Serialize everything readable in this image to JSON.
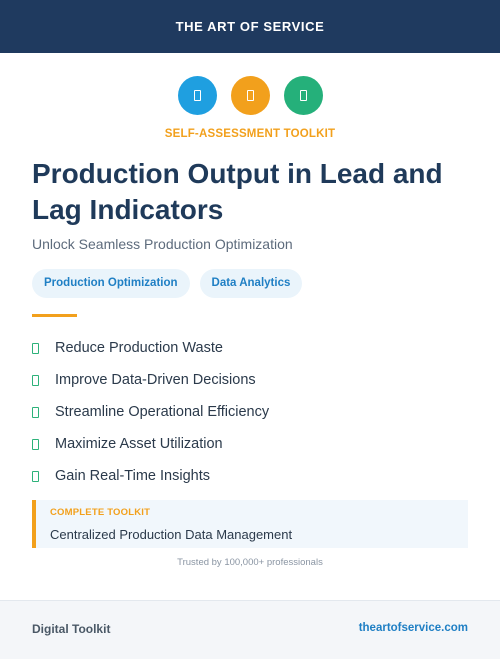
{
  "header": {
    "brand": "THE ART OF SERVICE"
  },
  "icons": [
    {
      "name": "blue-badge-icon",
      "color": "#1f9fe0"
    },
    {
      "name": "orange-badge-icon",
      "color": "#f2a01c"
    },
    {
      "name": "green-badge-icon",
      "color": "#25b07a"
    }
  ],
  "kicker": "SELF-ASSESSMENT TOOLKIT",
  "title": "Production Output in Lead and Lag Indicators",
  "subtitle": "Unlock Seamless Production Optimization",
  "tags": [
    "Production Optimization",
    "Data Analytics"
  ],
  "benefits": [
    "Reduce Production Waste",
    "Improve Data-Driven Decisions",
    "Streamline Operational Efficiency",
    "Maximize Asset Utilization",
    "Gain Real-Time Insights"
  ],
  "callout": {
    "label": "COMPLETE TOOLKIT",
    "text": "Centralized Production Data Management"
  },
  "trusted": "Trusted by 100,000+ professionals",
  "footer": {
    "left": "Digital Toolkit",
    "right": "theartofservice.com"
  },
  "colors": {
    "navy": "#1f3a5f",
    "accent": "#f2a01c",
    "link": "#1f7fc4",
    "check": "#2db27a"
  }
}
